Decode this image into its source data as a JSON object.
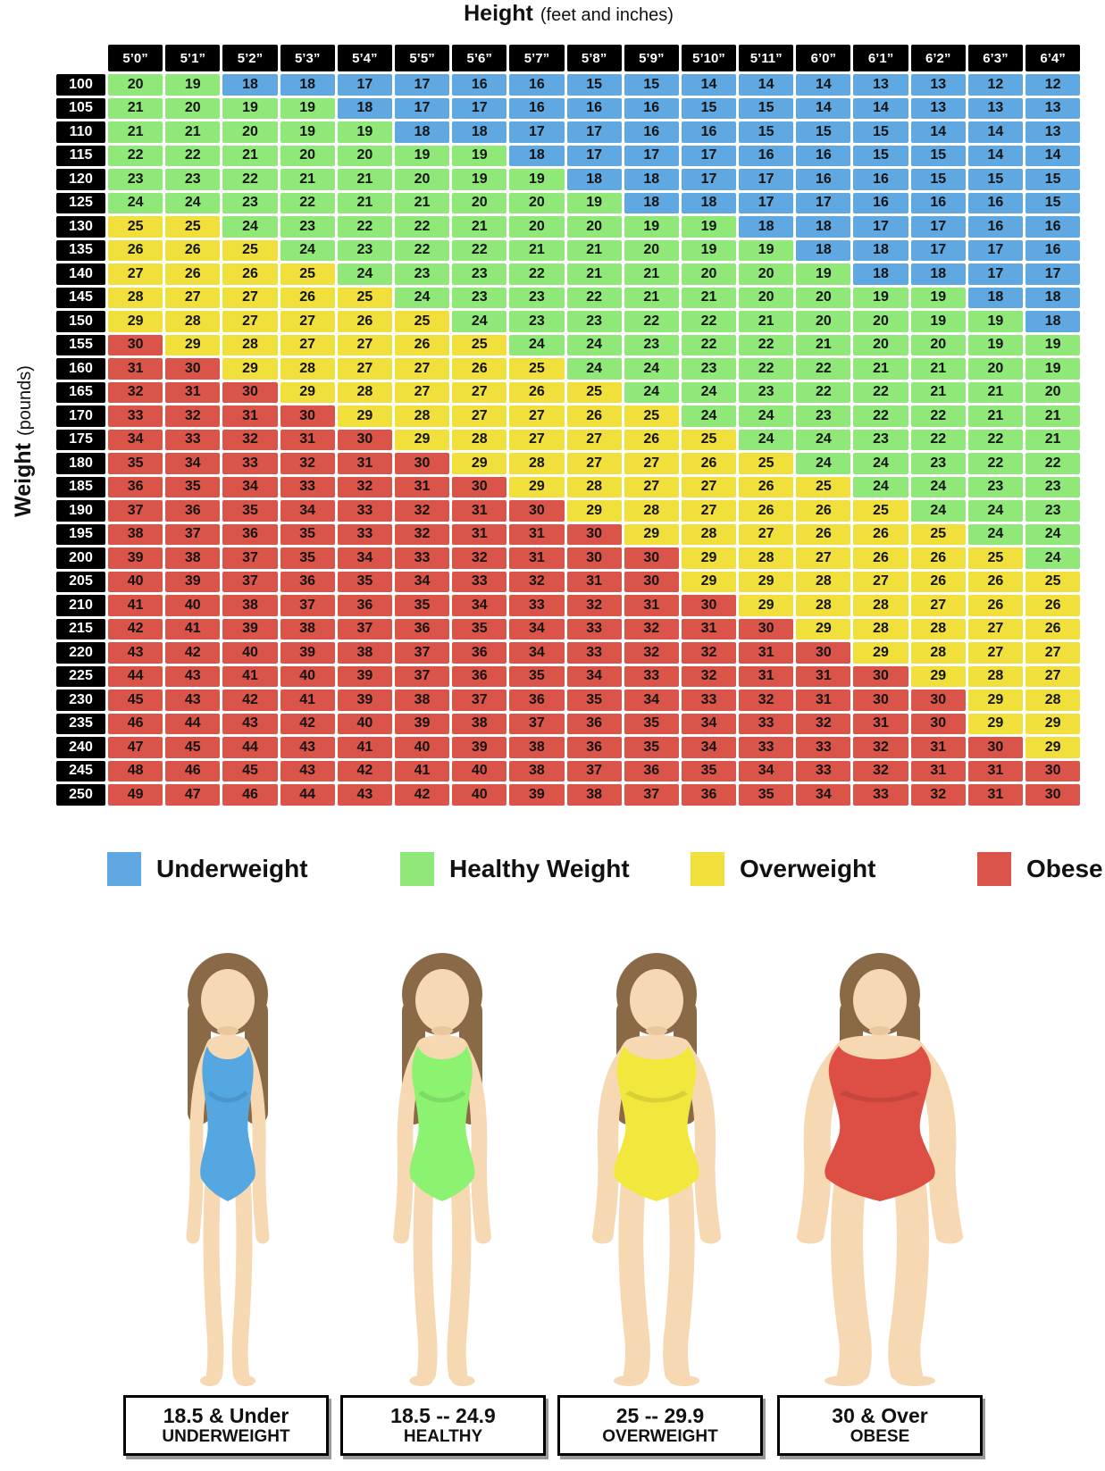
{
  "title": {
    "text": "Height",
    "sub": "(feet and inches)"
  },
  "y_axis": {
    "text": "Weight",
    "sub": "(pounds)"
  },
  "chart_data": {
    "type": "heatmap",
    "title": "BMI chart: Height (feet and inches) vs Weight (pounds)",
    "x": {
      "label": "Height (feet and inches)",
      "ticks": [
        "5’0”",
        "5’1”",
        "5’2”",
        "5’3”",
        "5’4”",
        "5’5”",
        "5’6”",
        "5’7”",
        "5’8”",
        "5’9”",
        "5’10”",
        "5’11”",
        "6’0”",
        "6’1”",
        "6’2”",
        "6’3”",
        "6’4”"
      ]
    },
    "y": {
      "label": "Weight (pounds)",
      "ticks": [
        100,
        105,
        110,
        115,
        120,
        125,
        130,
        135,
        140,
        145,
        150,
        155,
        160,
        165,
        170,
        175,
        180,
        185,
        190,
        195,
        200,
        205,
        210,
        215,
        220,
        225,
        230,
        235,
        240,
        245,
        250
      ]
    },
    "values": [
      [
        20,
        19,
        18,
        18,
        17,
        17,
        16,
        16,
        15,
        15,
        14,
        14,
        14,
        13,
        13,
        12,
        12
      ],
      [
        21,
        20,
        19,
        19,
        18,
        17,
        17,
        16,
        16,
        16,
        15,
        15,
        14,
        14,
        13,
        13,
        13
      ],
      [
        21,
        21,
        20,
        19,
        19,
        18,
        18,
        17,
        17,
        16,
        16,
        15,
        15,
        15,
        14,
        14,
        13
      ],
      [
        22,
        22,
        21,
        20,
        20,
        19,
        19,
        18,
        17,
        17,
        17,
        16,
        16,
        15,
        15,
        14,
        14
      ],
      [
        23,
        23,
        22,
        21,
        21,
        20,
        19,
        19,
        18,
        18,
        17,
        17,
        16,
        16,
        15,
        15,
        15
      ],
      [
        24,
        24,
        23,
        22,
        21,
        21,
        20,
        20,
        19,
        18,
        18,
        17,
        17,
        16,
        16,
        16,
        15
      ],
      [
        25,
        25,
        24,
        23,
        22,
        22,
        21,
        20,
        20,
        19,
        19,
        18,
        18,
        17,
        17,
        16,
        16
      ],
      [
        26,
        26,
        25,
        24,
        23,
        22,
        22,
        21,
        21,
        20,
        19,
        19,
        18,
        18,
        17,
        17,
        16
      ],
      [
        27,
        26,
        26,
        25,
        24,
        23,
        23,
        22,
        21,
        21,
        20,
        20,
        19,
        18,
        18,
        17,
        17
      ],
      [
        28,
        27,
        27,
        26,
        25,
        24,
        23,
        23,
        22,
        21,
        21,
        20,
        20,
        19,
        19,
        18,
        18
      ],
      [
        29,
        28,
        27,
        27,
        26,
        25,
        24,
        23,
        23,
        22,
        22,
        21,
        20,
        20,
        19,
        19,
        18
      ],
      [
        30,
        29,
        28,
        27,
        27,
        26,
        25,
        24,
        24,
        23,
        22,
        22,
        21,
        20,
        20,
        19,
        19
      ],
      [
        31,
        30,
        29,
        28,
        27,
        27,
        26,
        25,
        24,
        24,
        23,
        22,
        22,
        21,
        21,
        20,
        19
      ],
      [
        32,
        31,
        30,
        29,
        28,
        27,
        27,
        26,
        25,
        24,
        24,
        23,
        22,
        22,
        21,
        21,
        20
      ],
      [
        33,
        32,
        31,
        30,
        29,
        28,
        27,
        27,
        26,
        25,
        24,
        24,
        23,
        22,
        22,
        21,
        21
      ],
      [
        34,
        33,
        32,
        31,
        30,
        29,
        28,
        27,
        27,
        26,
        25,
        24,
        24,
        23,
        22,
        22,
        21
      ],
      [
        35,
        34,
        33,
        32,
        31,
        30,
        29,
        28,
        27,
        27,
        26,
        25,
        24,
        24,
        23,
        22,
        22
      ],
      [
        36,
        35,
        34,
        33,
        32,
        31,
        30,
        29,
        28,
        27,
        27,
        26,
        25,
        24,
        24,
        23,
        23
      ],
      [
        37,
        36,
        35,
        34,
        33,
        32,
        31,
        30,
        29,
        28,
        27,
        26,
        26,
        25,
        24,
        24,
        23
      ],
      [
        38,
        37,
        36,
        35,
        33,
        32,
        31,
        31,
        30,
        29,
        28,
        27,
        26,
        26,
        25,
        24,
        24
      ],
      [
        39,
        38,
        37,
        35,
        34,
        33,
        32,
        31,
        30,
        30,
        29,
        28,
        27,
        26,
        26,
        25,
        24
      ],
      [
        40,
        39,
        37,
        36,
        35,
        34,
        33,
        32,
        31,
        30,
        29,
        29,
        28,
        27,
        26,
        26,
        25
      ],
      [
        41,
        40,
        38,
        37,
        36,
        35,
        34,
        33,
        32,
        31,
        30,
        29,
        28,
        28,
        27,
        26,
        26
      ],
      [
        42,
        41,
        39,
        38,
        37,
        36,
        35,
        34,
        33,
        32,
        31,
        30,
        29,
        28,
        28,
        27,
        26
      ],
      [
        43,
        42,
        40,
        39,
        38,
        37,
        36,
        34,
        33,
        32,
        32,
        31,
        30,
        29,
        28,
        27,
        27
      ],
      [
        44,
        43,
        41,
        40,
        39,
        37,
        36,
        35,
        34,
        33,
        32,
        31,
        31,
        30,
        29,
        28,
        27
      ],
      [
        45,
        43,
        42,
        41,
        39,
        38,
        37,
        36,
        35,
        34,
        33,
        32,
        31,
        30,
        30,
        29,
        28
      ],
      [
        46,
        44,
        43,
        42,
        40,
        39,
        38,
        37,
        36,
        35,
        34,
        33,
        32,
        31,
        30,
        29,
        29
      ],
      [
        47,
        45,
        44,
        43,
        41,
        40,
        39,
        38,
        36,
        35,
        34,
        33,
        33,
        32,
        31,
        30,
        29
      ],
      [
        48,
        46,
        45,
        43,
        42,
        41,
        40,
        38,
        37,
        36,
        35,
        34,
        33,
        32,
        31,
        31,
        30
      ],
      [
        49,
        47,
        46,
        44,
        43,
        42,
        40,
        39,
        38,
        37,
        36,
        35,
        34,
        33,
        32,
        31,
        30
      ]
    ],
    "color_rules": {
      "underweight_max": 18,
      "healthy_max": 24,
      "overweight_max": 29,
      "obese_min": 30
    },
    "colors": {
      "underweight": "#5FA8E1",
      "healthy": "#8FE878",
      "overweight": "#F1DF3B",
      "obese": "#DB5449",
      "header_bg": "#000000",
      "header_text": "#FFFFFF",
      "cell_text": "#141414"
    }
  },
  "legend": {
    "items": [
      {
        "key": "underweight",
        "label": "Underweight"
      },
      {
        "key": "healthy",
        "label": "Healthy Weight"
      },
      {
        "key": "overweight",
        "label": "Overweight"
      },
      {
        "key": "obese",
        "label": "Obese"
      }
    ]
  },
  "figures": {
    "style": {
      "skin": "#F6D8B2",
      "hair": "#8A6A46",
      "neck_shadow": "#EAC69E"
    },
    "items": [
      {
        "key": "underweight",
        "suit_color": "#54A7E0",
        "body_scale": 1.0,
        "range": "18.5 & Under",
        "label": "UNDERWEIGHT"
      },
      {
        "key": "healthy",
        "suit_color": "#8CF370",
        "body_scale": 1.18,
        "range": "18.5 -- 24.9",
        "label": "HEALTHY"
      },
      {
        "key": "overweight",
        "suit_color": "#F2E83D",
        "body_scale": 1.55,
        "range": "25 -- 29.9",
        "label": "OVERWEIGHT"
      },
      {
        "key": "obese",
        "suit_color": "#DD4F44",
        "body_scale": 2.0,
        "range": "30 & Over",
        "label": "OBESE"
      }
    ]
  }
}
